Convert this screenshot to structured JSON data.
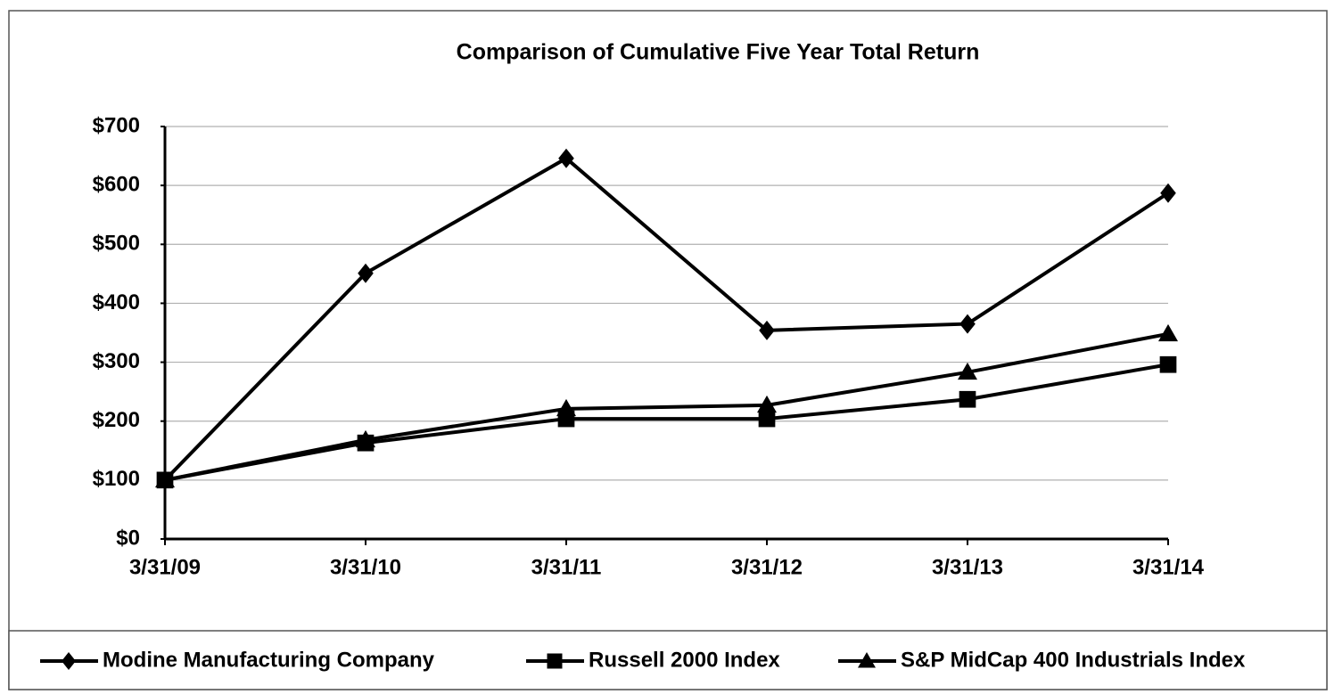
{
  "chart_data": {
    "type": "line",
    "title": "Comparison of Cumulative Five Year Total Return",
    "categories": [
      "3/31/09",
      "3/31/10",
      "3/31/11",
      "3/31/12",
      "3/31/13",
      "3/31/14"
    ],
    "series": [
      {
        "name": "Modine Manufacturing Company",
        "color": "#000000",
        "marker": "diamond",
        "values": [
          100,
          451,
          646,
          354,
          365,
          587
        ]
      },
      {
        "name": "Russell 2000 Index",
        "color": "#000000",
        "marker": "square",
        "values": [
          100,
          163,
          204,
          204,
          237,
          296
        ]
      },
      {
        "name": "S&P MidCap 400 Industrials Index",
        "color": "#000000",
        "marker": "triangle",
        "values": [
          100,
          168,
          221,
          227,
          283,
          348
        ]
      }
    ],
    "ylim": [
      0,
      700
    ],
    "yticks": [
      {
        "value": 0,
        "label": "$0"
      },
      {
        "value": 100,
        "label": "$100"
      },
      {
        "value": 200,
        "label": "$200"
      },
      {
        "value": 300,
        "label": "$300"
      },
      {
        "value": 400,
        "label": "$400"
      },
      {
        "value": 500,
        "label": "$500"
      },
      {
        "value": 600,
        "label": "$600"
      },
      {
        "value": 700,
        "label": "$700"
      }
    ],
    "grid": true,
    "legend": "bottom"
  }
}
